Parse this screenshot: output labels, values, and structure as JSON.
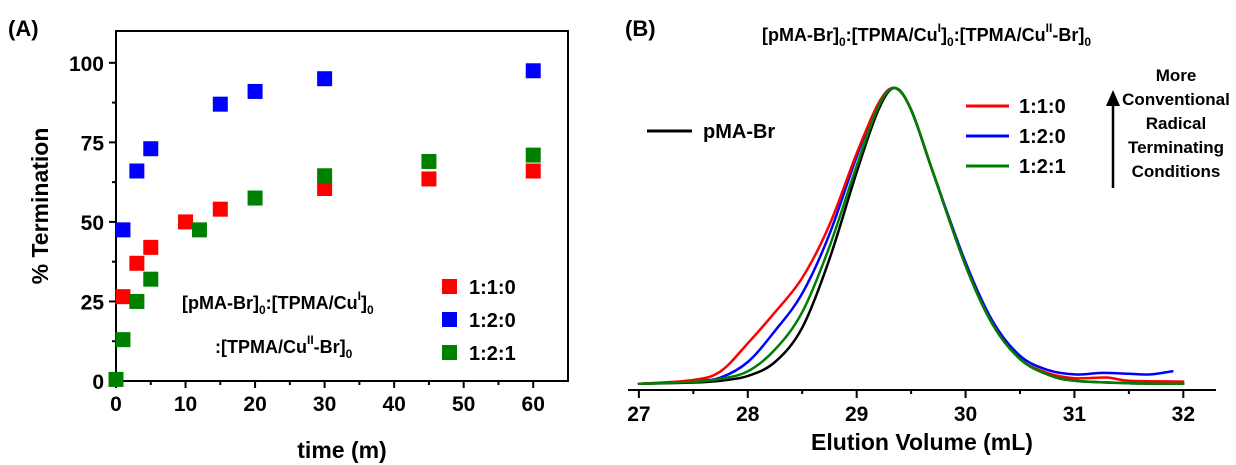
{
  "chart_data": [
    {
      "panel": "(A)",
      "type": "scatter",
      "xlabel": "time (m)",
      "ylabel": "% Termination",
      "xlim": [
        0,
        65
      ],
      "ylim": [
        0,
        110
      ],
      "xticks": [
        0,
        10,
        20,
        30,
        40,
        50,
        60
      ],
      "yticks": [
        0,
        25,
        50,
        75,
        100
      ],
      "grid": false,
      "legend_position": "lower-right",
      "annotation": {
        "line1": {
          "base": "[pMA-Br]",
          "sub1": "0",
          "mid": ":[TPMA/Cu",
          "sup": "I",
          "close": "]",
          "sub2": "0"
        },
        "line2": {
          "base": ":[TPMA/Cu",
          "sup": "II",
          "mid": "-Br]",
          "sub": "0"
        }
      },
      "series": [
        {
          "name": "1:1:0",
          "color": "#ff0000",
          "points": [
            [
              1,
              26.5
            ],
            [
              3,
              37
            ],
            [
              5,
              42
            ],
            [
              10,
              50
            ],
            [
              15,
              54
            ],
            [
              30,
              60.5
            ],
            [
              45,
              63.5
            ],
            [
              60,
              66
            ]
          ]
        },
        {
          "name": "1:2:0",
          "color": "#0000ff",
          "points": [
            [
              1,
              47.5
            ],
            [
              3,
              66
            ],
            [
              5,
              73
            ],
            [
              15,
              87
            ],
            [
              20,
              91
            ],
            [
              30,
              95
            ],
            [
              60,
              97.5
            ]
          ]
        },
        {
          "name": "1:2:1",
          "color": "#008000",
          "points": [
            [
              0,
              0.5
            ],
            [
              1,
              13
            ],
            [
              3,
              25
            ],
            [
              5,
              32
            ],
            [
              12,
              47.5
            ],
            [
              20,
              57.5
            ],
            [
              30,
              64.5
            ],
            [
              45,
              69
            ],
            [
              60,
              71
            ]
          ]
        }
      ]
    },
    {
      "panel": "(B)",
      "type": "line",
      "xlabel": "Elution Volume (mL)",
      "ylabel": "",
      "xlim": [
        26.9,
        32.3
      ],
      "ylim": [
        0,
        1.06
      ],
      "xticks": [
        27,
        28,
        29,
        30,
        31,
        32
      ],
      "grid": false,
      "title": {
        "p1": "[pMA-Br]",
        "s1": "0",
        "p2": ":[TPMA/Cu",
        "u1": "I",
        "p3": "]",
        "s2": "0",
        "p4": ":[TPMA/Cu",
        "u2": "II",
        "p5": "-Br]",
        "s3": "0"
      },
      "arrow_label": [
        "More",
        "Conventional",
        "Radical",
        "Terminating",
        "Conditions"
      ],
      "series": [
        {
          "name": "pMA-Br",
          "color": "#000000",
          "points": [
            [
              27,
              0.02
            ],
            [
              27.5,
              0.024
            ],
            [
              27.75,
              0.03
            ],
            [
              28,
              0.045
            ],
            [
              28.25,
              0.09
            ],
            [
              28.5,
              0.2
            ],
            [
              28.75,
              0.42
            ],
            [
              29,
              0.7
            ],
            [
              29.2,
              0.9
            ],
            [
              29.35,
              0.97
            ],
            [
              29.5,
              0.9
            ],
            [
              29.7,
              0.7
            ],
            [
              30,
              0.4
            ],
            [
              30.25,
              0.21
            ],
            [
              30.5,
              0.1
            ],
            [
              30.75,
              0.05
            ],
            [
              31,
              0.03
            ],
            [
              31.5,
              0.022
            ],
            [
              32,
              0.02
            ]
          ]
        },
        {
          "name": "1:1:0",
          "color": "#ff0000",
          "points": [
            [
              27,
              0.02
            ],
            [
              27.5,
              0.032
            ],
            [
              27.75,
              0.06
            ],
            [
              28,
              0.15
            ],
            [
              28.25,
              0.25
            ],
            [
              28.5,
              0.36
            ],
            [
              28.75,
              0.53
            ],
            [
              29,
              0.76
            ],
            [
              29.2,
              0.92
            ],
            [
              29.35,
              0.97
            ],
            [
              29.5,
              0.9
            ],
            [
              29.7,
              0.7
            ],
            [
              30,
              0.4
            ],
            [
              30.25,
              0.21
            ],
            [
              30.5,
              0.1
            ],
            [
              30.75,
              0.055
            ],
            [
              31,
              0.038
            ],
            [
              31.3,
              0.04
            ],
            [
              31.5,
              0.03
            ],
            [
              32,
              0.027
            ]
          ]
        },
        {
          "name": "1:2:0",
          "color": "#0000ff",
          "points": [
            [
              27,
              0.02
            ],
            [
              27.5,
              0.028
            ],
            [
              27.75,
              0.04
            ],
            [
              28,
              0.09
            ],
            [
              28.25,
              0.19
            ],
            [
              28.5,
              0.31
            ],
            [
              28.75,
              0.5
            ],
            [
              29,
              0.75
            ],
            [
              29.2,
              0.92
            ],
            [
              29.35,
              0.97
            ],
            [
              29.5,
              0.9
            ],
            [
              29.7,
              0.7
            ],
            [
              30,
              0.41
            ],
            [
              30.25,
              0.22
            ],
            [
              30.5,
              0.11
            ],
            [
              30.75,
              0.065
            ],
            [
              31,
              0.05
            ],
            [
              31.25,
              0.055
            ],
            [
              31.5,
              0.052
            ],
            [
              31.7,
              0.05
            ],
            [
              31.9,
              0.06
            ]
          ]
        },
        {
          "name": "1:2:1",
          "color": "#008000",
          "points": [
            [
              27,
              0.02
            ],
            [
              27.5,
              0.026
            ],
            [
              27.75,
              0.036
            ],
            [
              28,
              0.06
            ],
            [
              28.25,
              0.13
            ],
            [
              28.5,
              0.25
            ],
            [
              28.75,
              0.46
            ],
            [
              29,
              0.72
            ],
            [
              29.2,
              0.91
            ],
            [
              29.35,
              0.97
            ],
            [
              29.5,
              0.9
            ],
            [
              29.7,
              0.7
            ],
            [
              30,
              0.4
            ],
            [
              30.25,
              0.21
            ],
            [
              30.5,
              0.1
            ],
            [
              30.75,
              0.05
            ],
            [
              31,
              0.03
            ],
            [
              31.5,
              0.022
            ],
            [
              32,
              0.02
            ]
          ]
        }
      ]
    }
  ]
}
